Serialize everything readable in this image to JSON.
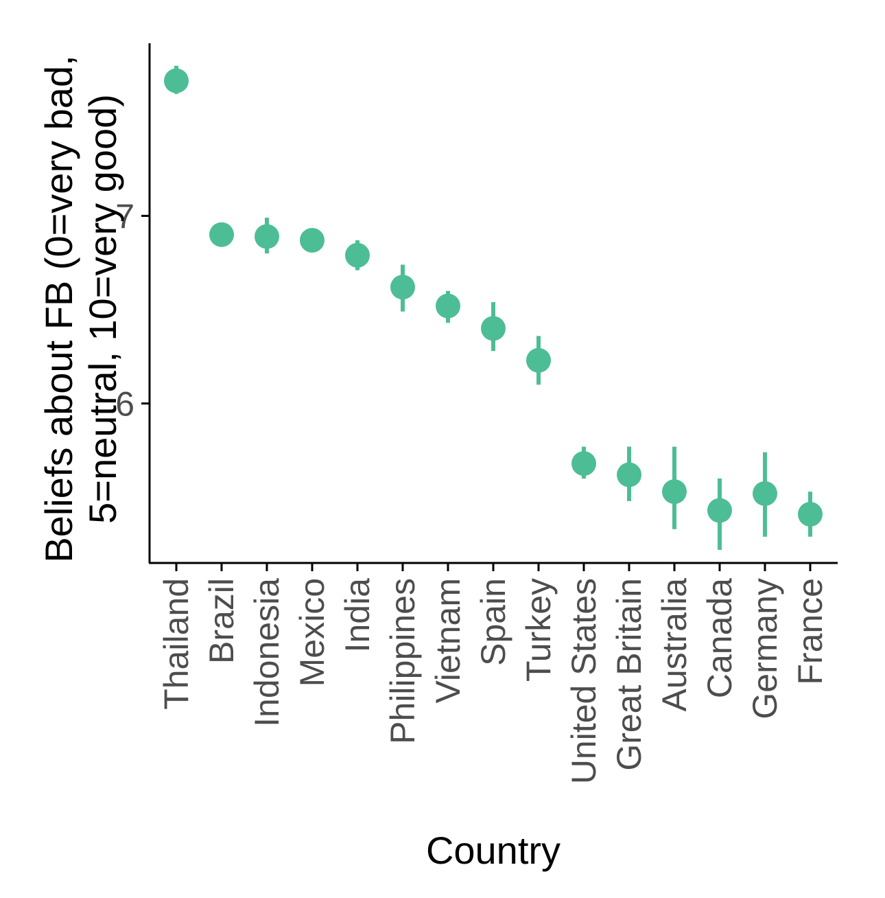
{
  "chart_data": {
    "type": "scatter",
    "xlabel": "Country",
    "ylabel_lines": [
      "Beliefs about FB (0=very bad,",
      "5=neutral, 10=very good)"
    ],
    "categories": [
      "Thailand",
      "Brazil",
      "Indonesia",
      "Mexico",
      "India",
      "Philippines",
      "Vietnam",
      "Spain",
      "Turkey",
      "United States",
      "Great Britain",
      "Australia",
      "Canada",
      "Germany",
      "France"
    ],
    "values": [
      7.72,
      6.9,
      6.89,
      6.87,
      6.79,
      6.62,
      6.52,
      6.4,
      6.23,
      5.68,
      5.62,
      5.53,
      5.43,
      5.52,
      5.41
    ],
    "error_low": [
      7.65,
      6.9,
      6.8,
      6.87,
      6.71,
      6.49,
      6.43,
      6.28,
      6.1,
      5.6,
      5.48,
      5.33,
      5.22,
      5.29,
      5.29
    ],
    "error_high": [
      7.8,
      6.9,
      6.99,
      6.87,
      6.87,
      6.74,
      6.6,
      6.54,
      6.36,
      5.77,
      5.77,
      5.77,
      5.6,
      5.74,
      5.53
    ],
    "yticks": [
      "6",
      "7"
    ],
    "ylim": [
      5.15,
      7.92
    ],
    "color": "#4dbd95",
    "grid": false,
    "legend": "none"
  }
}
